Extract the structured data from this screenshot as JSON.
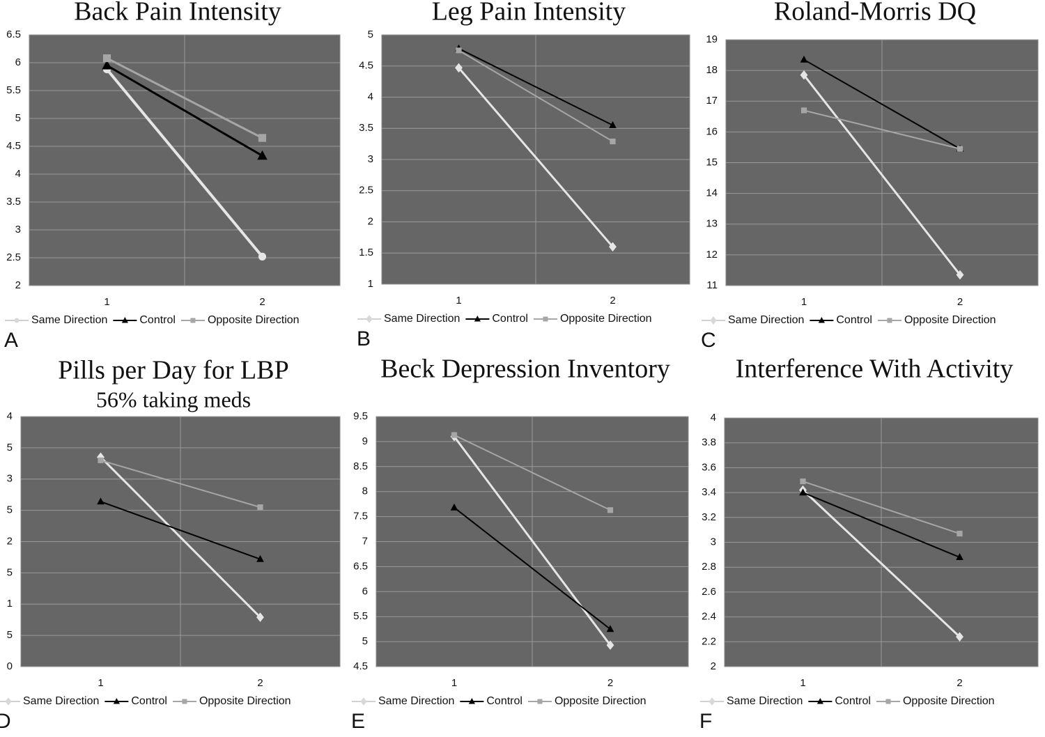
{
  "chart_data": [
    {
      "type": "line",
      "label": "A",
      "title": "Back Pain Intensity",
      "categories": [
        "1",
        "2"
      ],
      "ylim": [
        2,
        6.5
      ],
      "yticks": [
        2,
        2.5,
        3,
        3.5,
        4,
        4.5,
        5,
        5.5,
        6,
        6.5
      ],
      "grid": true,
      "line_width": 3,
      "series": [
        {
          "name": "Same Direction",
          "color": "#e6e6e6",
          "marker": "circle",
          "values": [
            5.88,
            2.52
          ]
        },
        {
          "name": "Control",
          "color": "#000000",
          "marker": "triangle",
          "values": [
            5.95,
            4.33
          ]
        },
        {
          "name": "Opposite Direction",
          "color": "#a6a6a6",
          "marker": "square",
          "values": [
            6.08,
            4.65
          ]
        }
      ]
    },
    {
      "type": "line",
      "label": "B",
      "title": "Leg Pain Intensity",
      "categories": [
        "1",
        "2"
      ],
      "ylim": [
        1,
        5
      ],
      "yticks": [
        1,
        1.5,
        2,
        2.5,
        3,
        3.5,
        4,
        4.5,
        5
      ],
      "grid": true,
      "line_width": 2,
      "series": [
        {
          "name": "Same Direction",
          "color": "#e6e6e6",
          "marker": "diamond",
          "values": [
            4.47,
            1.6
          ]
        },
        {
          "name": "Control",
          "color": "#000000",
          "marker": "triangle",
          "values": [
            4.78,
            3.55
          ]
        },
        {
          "name": "Opposite Direction",
          "color": "#a6a6a6",
          "marker": "square",
          "values": [
            4.75,
            3.29
          ]
        }
      ]
    },
    {
      "type": "line",
      "label": "C",
      "title": "Roland-Morris DQ",
      "categories": [
        "1",
        "2"
      ],
      "ylim": [
        11,
        19
      ],
      "yticks": [
        11,
        12,
        13,
        14,
        15,
        16,
        17,
        18,
        19
      ],
      "grid": true,
      "line_width": 2,
      "series": [
        {
          "name": "Same Direction",
          "color": "#e6e6e6",
          "marker": "diamond",
          "values": [
            17.85,
            11.35
          ]
        },
        {
          "name": "Control",
          "color": "#000000",
          "marker": "triangle",
          "values": [
            18.35,
            15.45
          ]
        },
        {
          "name": "Opposite Direction",
          "color": "#a6a6a6",
          "marker": "square",
          "values": [
            16.7,
            15.45
          ]
        }
      ]
    },
    {
      "type": "line",
      "label": "D",
      "title": "Pills per Day for LBP",
      "subtitle": "56% taking meds",
      "categories": [
        "1",
        "2"
      ],
      "ylim": [
        0,
        4
      ],
      "yticks": [
        0,
        {
          "value": 0.5,
          "label": "5"
        },
        1,
        {
          "value": 1.5,
          "label": "5"
        },
        2,
        {
          "value": 2.5,
          "label": "5"
        },
        3,
        {
          "value": 3.5,
          "label": "5"
        },
        4
      ],
      "grid": true,
      "line_width": 2,
      "series": [
        {
          "name": "Same Direction",
          "color": "#e6e6e6",
          "marker": "diamond",
          "values": [
            3.35,
            0.79
          ]
        },
        {
          "name": "Control",
          "color": "#000000",
          "marker": "triangle",
          "values": [
            2.64,
            1.72
          ]
        },
        {
          "name": "Opposite Direction",
          "color": "#a6a6a6",
          "marker": "square",
          "values": [
            3.3,
            2.55
          ]
        }
      ]
    },
    {
      "type": "line",
      "label": "E",
      "title": "Beck Depression Inventory",
      "categories": [
        "1",
        "2"
      ],
      "ylim": [
        4.5,
        9.5
      ],
      "yticks": [
        4.5,
        5,
        5.5,
        6,
        6.5,
        7,
        7.5,
        8,
        8.5,
        9,
        9.5
      ],
      "grid": true,
      "line_width": 2,
      "series": [
        {
          "name": "Same Direction",
          "color": "#e6e6e6",
          "marker": "diamond",
          "values": [
            9.1,
            4.93
          ]
        },
        {
          "name": "Control",
          "color": "#000000",
          "marker": "triangle",
          "values": [
            7.68,
            5.25
          ]
        },
        {
          "name": "Opposite Direction",
          "color": "#a6a6a6",
          "marker": "square",
          "values": [
            9.13,
            7.63
          ]
        }
      ]
    },
    {
      "type": "line",
      "label": "F",
      "title": "Interference With Activity",
      "categories": [
        "1",
        "2"
      ],
      "ylim": [
        2,
        4
      ],
      "yticks": [
        2,
        2.2,
        2.4,
        2.6,
        2.8,
        3,
        3.2,
        3.4,
        3.6,
        3.8,
        4
      ],
      "grid": true,
      "line_width": 2,
      "series": [
        {
          "name": "Same Direction",
          "color": "#e6e6e6",
          "marker": "diamond",
          "values": [
            3.42,
            2.24
          ]
        },
        {
          "name": "Control",
          "color": "#000000",
          "marker": "triangle",
          "values": [
            3.4,
            2.88
          ]
        },
        {
          "name": "Opposite Direction",
          "color": "#a6a6a6",
          "marker": "square",
          "values": [
            3.49,
            3.07
          ]
        }
      ]
    }
  ]
}
